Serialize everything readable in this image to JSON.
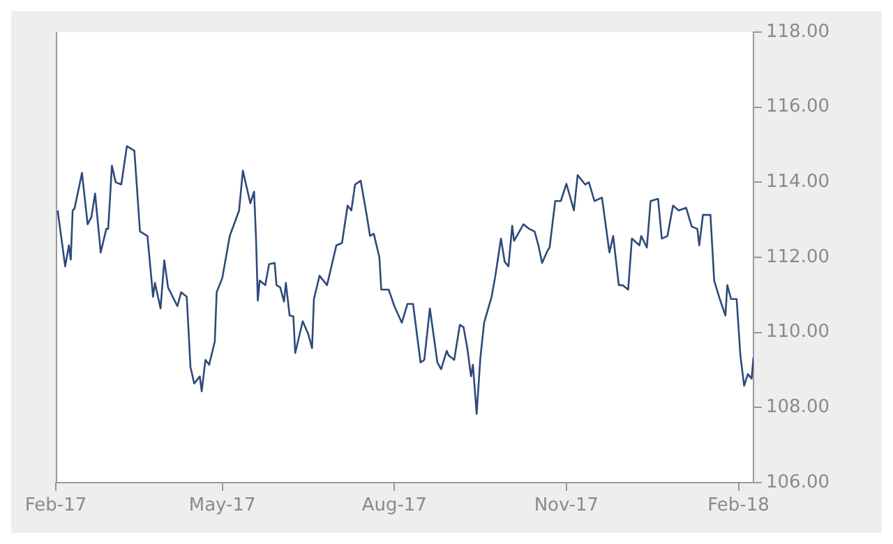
{
  "chart_data": {
    "type": "line",
    "xlim": [
      "2017-02-01",
      "2018-02-09"
    ],
    "xticks": [
      {
        "value": "2017-02-01",
        "label": "Feb-17"
      },
      {
        "value": "2017-05-01",
        "label": "May-17"
      },
      {
        "value": "2017-08-01",
        "label": "Aug-17"
      },
      {
        "value": "2017-11-01",
        "label": "Nov-17"
      },
      {
        "value": "2018-02-01",
        "label": "Feb-18"
      }
    ],
    "ylim": [
      106,
      118
    ],
    "yticks": [
      {
        "value": 106,
        "label": "106.00"
      },
      {
        "value": 108,
        "label": "108.00"
      },
      {
        "value": 110,
        "label": "110.00"
      },
      {
        "value": 112,
        "label": "112.00"
      },
      {
        "value": 114,
        "label": "114.00"
      },
      {
        "value": 116,
        "label": "116.00"
      },
      {
        "value": 118,
        "label": "118.00"
      }
    ],
    "grid": false,
    "legend": false,
    "marker": "none",
    "line_style": "solid",
    "x": [
      "2017-02-02",
      "2017-02-06",
      "2017-02-08",
      "2017-02-09",
      "2017-02-10",
      "2017-02-11",
      "2017-02-15",
      "2017-02-18",
      "2017-02-20",
      "2017-02-22",
      "2017-02-25",
      "2017-02-28",
      "2017-03-01",
      "2017-03-03",
      "2017-03-05",
      "2017-03-08",
      "2017-03-11",
      "2017-03-15",
      "2017-03-18",
      "2017-03-22",
      "2017-03-25",
      "2017-03-26",
      "2017-03-29",
      "2017-03-31",
      "2017-04-02",
      "2017-04-07",
      "2017-04-09",
      "2017-04-12",
      "2017-04-14",
      "2017-04-16",
      "2017-04-19",
      "2017-04-20",
      "2017-04-22",
      "2017-04-24",
      "2017-04-27",
      "2017-04-28",
      "2017-05-01",
      "2017-05-05",
      "2017-05-10",
      "2017-05-12",
      "2017-05-16",
      "2017-05-18",
      "2017-05-19",
      "2017-05-20",
      "2017-05-21",
      "2017-05-24",
      "2017-05-26",
      "2017-05-29",
      "2017-05-30",
      "2017-06-01",
      "2017-06-03",
      "2017-06-04",
      "2017-06-06",
      "2017-06-08",
      "2017-06-09",
      "2017-06-13",
      "2017-06-16",
      "2017-06-18",
      "2017-06-19",
      "2017-06-22",
      "2017-06-26",
      "2017-07-01",
      "2017-07-04",
      "2017-07-07",
      "2017-07-09",
      "2017-07-11",
      "2017-07-14",
      "2017-07-17",
      "2017-07-19",
      "2017-07-21",
      "2017-07-24",
      "2017-07-25",
      "2017-07-29",
      "2017-08-01",
      "2017-08-05",
      "2017-08-08",
      "2017-08-11",
      "2017-08-15",
      "2017-08-17",
      "2017-08-20",
      "2017-08-24",
      "2017-08-26",
      "2017-08-29",
      "2017-08-30",
      "2017-09-02",
      "2017-09-05",
      "2017-09-07",
      "2017-09-09",
      "2017-09-11",
      "2017-09-12",
      "2017-09-14",
      "2017-09-16",
      "2017-09-18",
      "2017-09-22",
      "2017-09-24",
      "2017-09-27",
      "2017-09-29",
      "2017-10-01",
      "2017-10-03",
      "2017-10-04",
      "2017-10-09",
      "2017-10-12",
      "2017-10-15",
      "2017-10-17",
      "2017-10-19",
      "2017-10-22",
      "2017-10-23",
      "2017-10-26",
      "2017-10-29",
      "2017-11-01",
      "2017-11-05",
      "2017-11-07",
      "2017-11-11",
      "2017-11-13",
      "2017-11-16",
      "2017-11-20",
      "2017-11-24",
      "2017-11-26",
      "2017-11-29",
      "2017-12-01",
      "2017-12-04",
      "2017-12-06",
      "2017-12-10",
      "2017-12-11",
      "2017-12-14",
      "2017-12-16",
      "2017-12-20",
      "2017-12-22",
      "2017-12-25",
      "2017-12-28",
      "2017-12-31",
      "2018-01-04",
      "2018-01-07",
      "2018-01-10",
      "2018-01-11",
      "2018-01-13",
      "2018-01-17",
      "2018-01-19",
      "2018-01-22",
      "2018-01-25",
      "2018-01-26",
      "2018-01-28",
      "2018-01-31",
      "2018-02-02",
      "2018-02-04",
      "2018-02-06",
      "2018-02-08",
      "2018-02-09"
    ],
    "series": [
      {
        "color": "#2e4a7a",
        "values": [
          113.25,
          111.76,
          112.32,
          111.94,
          113.25,
          113.3,
          114.25,
          112.88,
          113.07,
          113.7,
          112.13,
          112.76,
          112.76,
          114.44,
          114.0,
          113.94,
          114.96,
          114.84,
          112.69,
          112.57,
          110.95,
          111.32,
          110.64,
          111.92,
          111.2,
          110.7,
          111.07,
          110.95,
          109.08,
          108.64,
          108.83,
          108.43,
          109.27,
          109.14,
          109.76,
          111.07,
          111.45,
          112.57,
          113.25,
          114.31,
          113.44,
          113.75,
          112.57,
          110.85,
          111.38,
          111.26,
          111.82,
          111.85,
          111.26,
          111.2,
          110.82,
          111.32,
          110.45,
          110.43,
          109.45,
          110.3,
          109.95,
          109.58,
          110.89,
          111.51,
          111.26,
          112.32,
          112.38,
          113.38,
          113.25,
          113.94,
          114.04,
          113.19,
          112.57,
          112.63,
          112.0,
          111.14,
          111.14,
          110.7,
          110.26,
          110.76,
          110.76,
          109.2,
          109.27,
          110.64,
          109.2,
          109.02,
          109.51,
          109.39,
          109.27,
          110.2,
          110.14,
          109.58,
          108.83,
          109.14,
          107.83,
          109.33,
          110.26,
          110.95,
          111.51,
          112.5,
          111.88,
          111.76,
          112.84,
          112.44,
          112.88,
          112.76,
          112.69,
          112.32,
          111.85,
          112.19,
          112.26,
          113.5,
          113.5,
          113.96,
          113.25,
          114.19,
          113.94,
          114.0,
          113.5,
          113.59,
          112.13,
          112.57,
          111.26,
          111.26,
          111.14,
          112.5,
          112.32,
          112.57,
          112.26,
          113.5,
          113.56,
          112.5,
          112.57,
          113.38,
          113.25,
          113.32,
          112.82,
          112.76,
          112.32,
          113.13,
          113.13,
          111.38,
          110.89,
          110.45,
          111.26,
          110.89,
          110.89,
          109.39,
          108.58,
          108.89,
          108.77,
          109.33
        ]
      }
    ]
  }
}
